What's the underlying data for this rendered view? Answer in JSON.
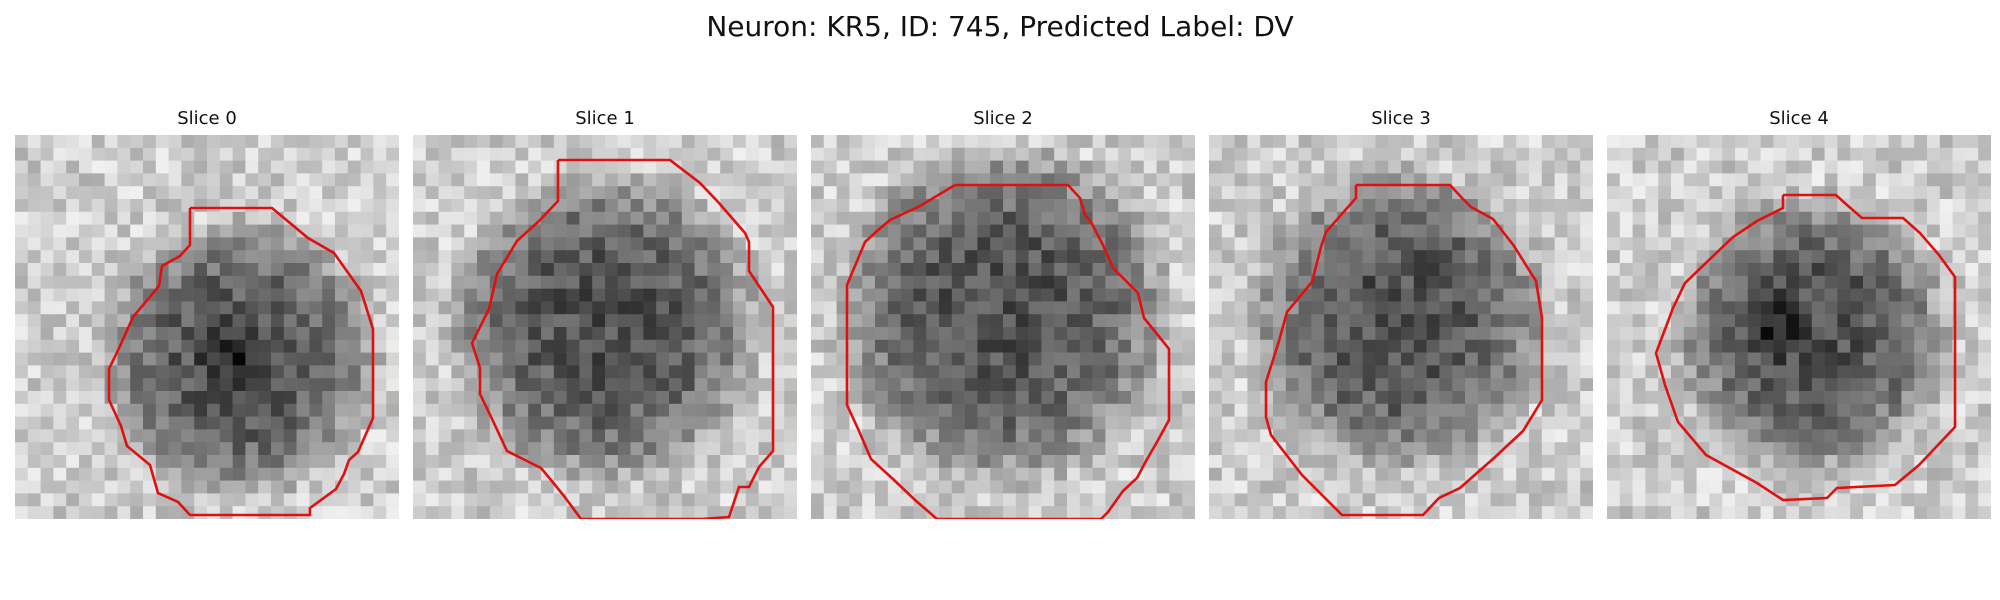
{
  "figure": {
    "title": "Neuron: KR5, ID: 745, Predicted Label: DV"
  },
  "panels": [
    {
      "title": "Slice 0",
      "image": {
        "kind": "grayscale-microscopy",
        "description_name": "soma-slice-0"
      },
      "contour_color": "#e01010"
    },
    {
      "title": "Slice 1",
      "image": {
        "kind": "grayscale-microscopy",
        "description_name": "soma-slice-1"
      },
      "contour_color": "#e01010"
    },
    {
      "title": "Slice 2",
      "image": {
        "kind": "grayscale-microscopy",
        "description_name": "soma-slice-2"
      },
      "contour_color": "#e01010"
    },
    {
      "title": "Slice 3",
      "image": {
        "kind": "grayscale-microscopy",
        "description_name": "soma-slice-3"
      },
      "contour_color": "#e01010"
    },
    {
      "title": "Slice 4",
      "image": {
        "kind": "grayscale-microscopy",
        "description_name": "soma-slice-4"
      },
      "contour_color": "#e01010"
    }
  ]
}
